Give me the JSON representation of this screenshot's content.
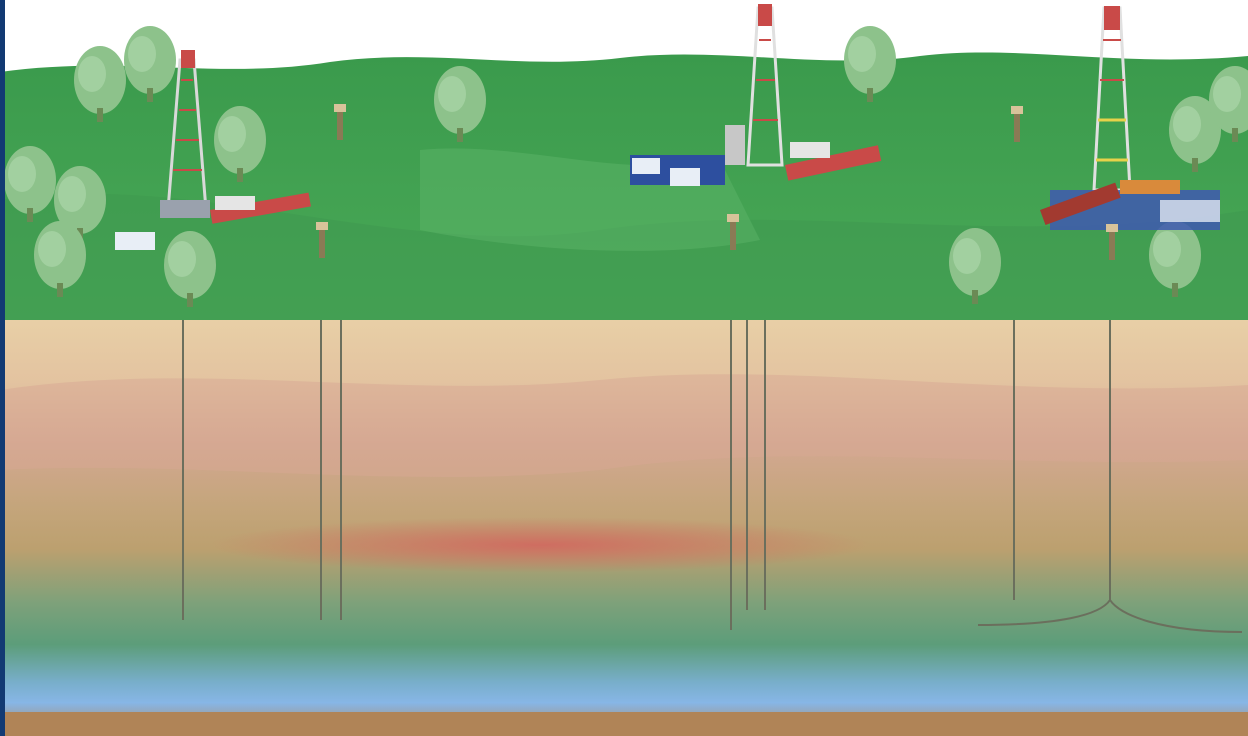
{
  "diagram": {
    "palette": {
      "sky": "#ffffff",
      "grass_light": "#4fa75a",
      "grass_dark": "#2f8b45",
      "tree": "#7fb97f",
      "sand": "#e8cfa6",
      "clay": "#d2a68f",
      "tan": "#bca06f",
      "red_band": "#c8695e",
      "green_shale": "#5f9f7a",
      "blue_aquifer": "#7fb2e0",
      "bedrock": "#b08457",
      "well_line": "#6b6f5d",
      "rig": "#c94a48",
      "truck_blue": "#2d4f9f"
    },
    "items": {
      "rig_left": "drilling-rig",
      "rig_center": "drilling-rig",
      "rig_right": "drilling-rig",
      "pump_jacks": [
        "pump-jack",
        "pump-jack",
        "pump-jack",
        "pump-jack",
        "pump-jack"
      ],
      "vertical_wells": 7,
      "horizontal_well": "horizontal-branch"
    }
  }
}
